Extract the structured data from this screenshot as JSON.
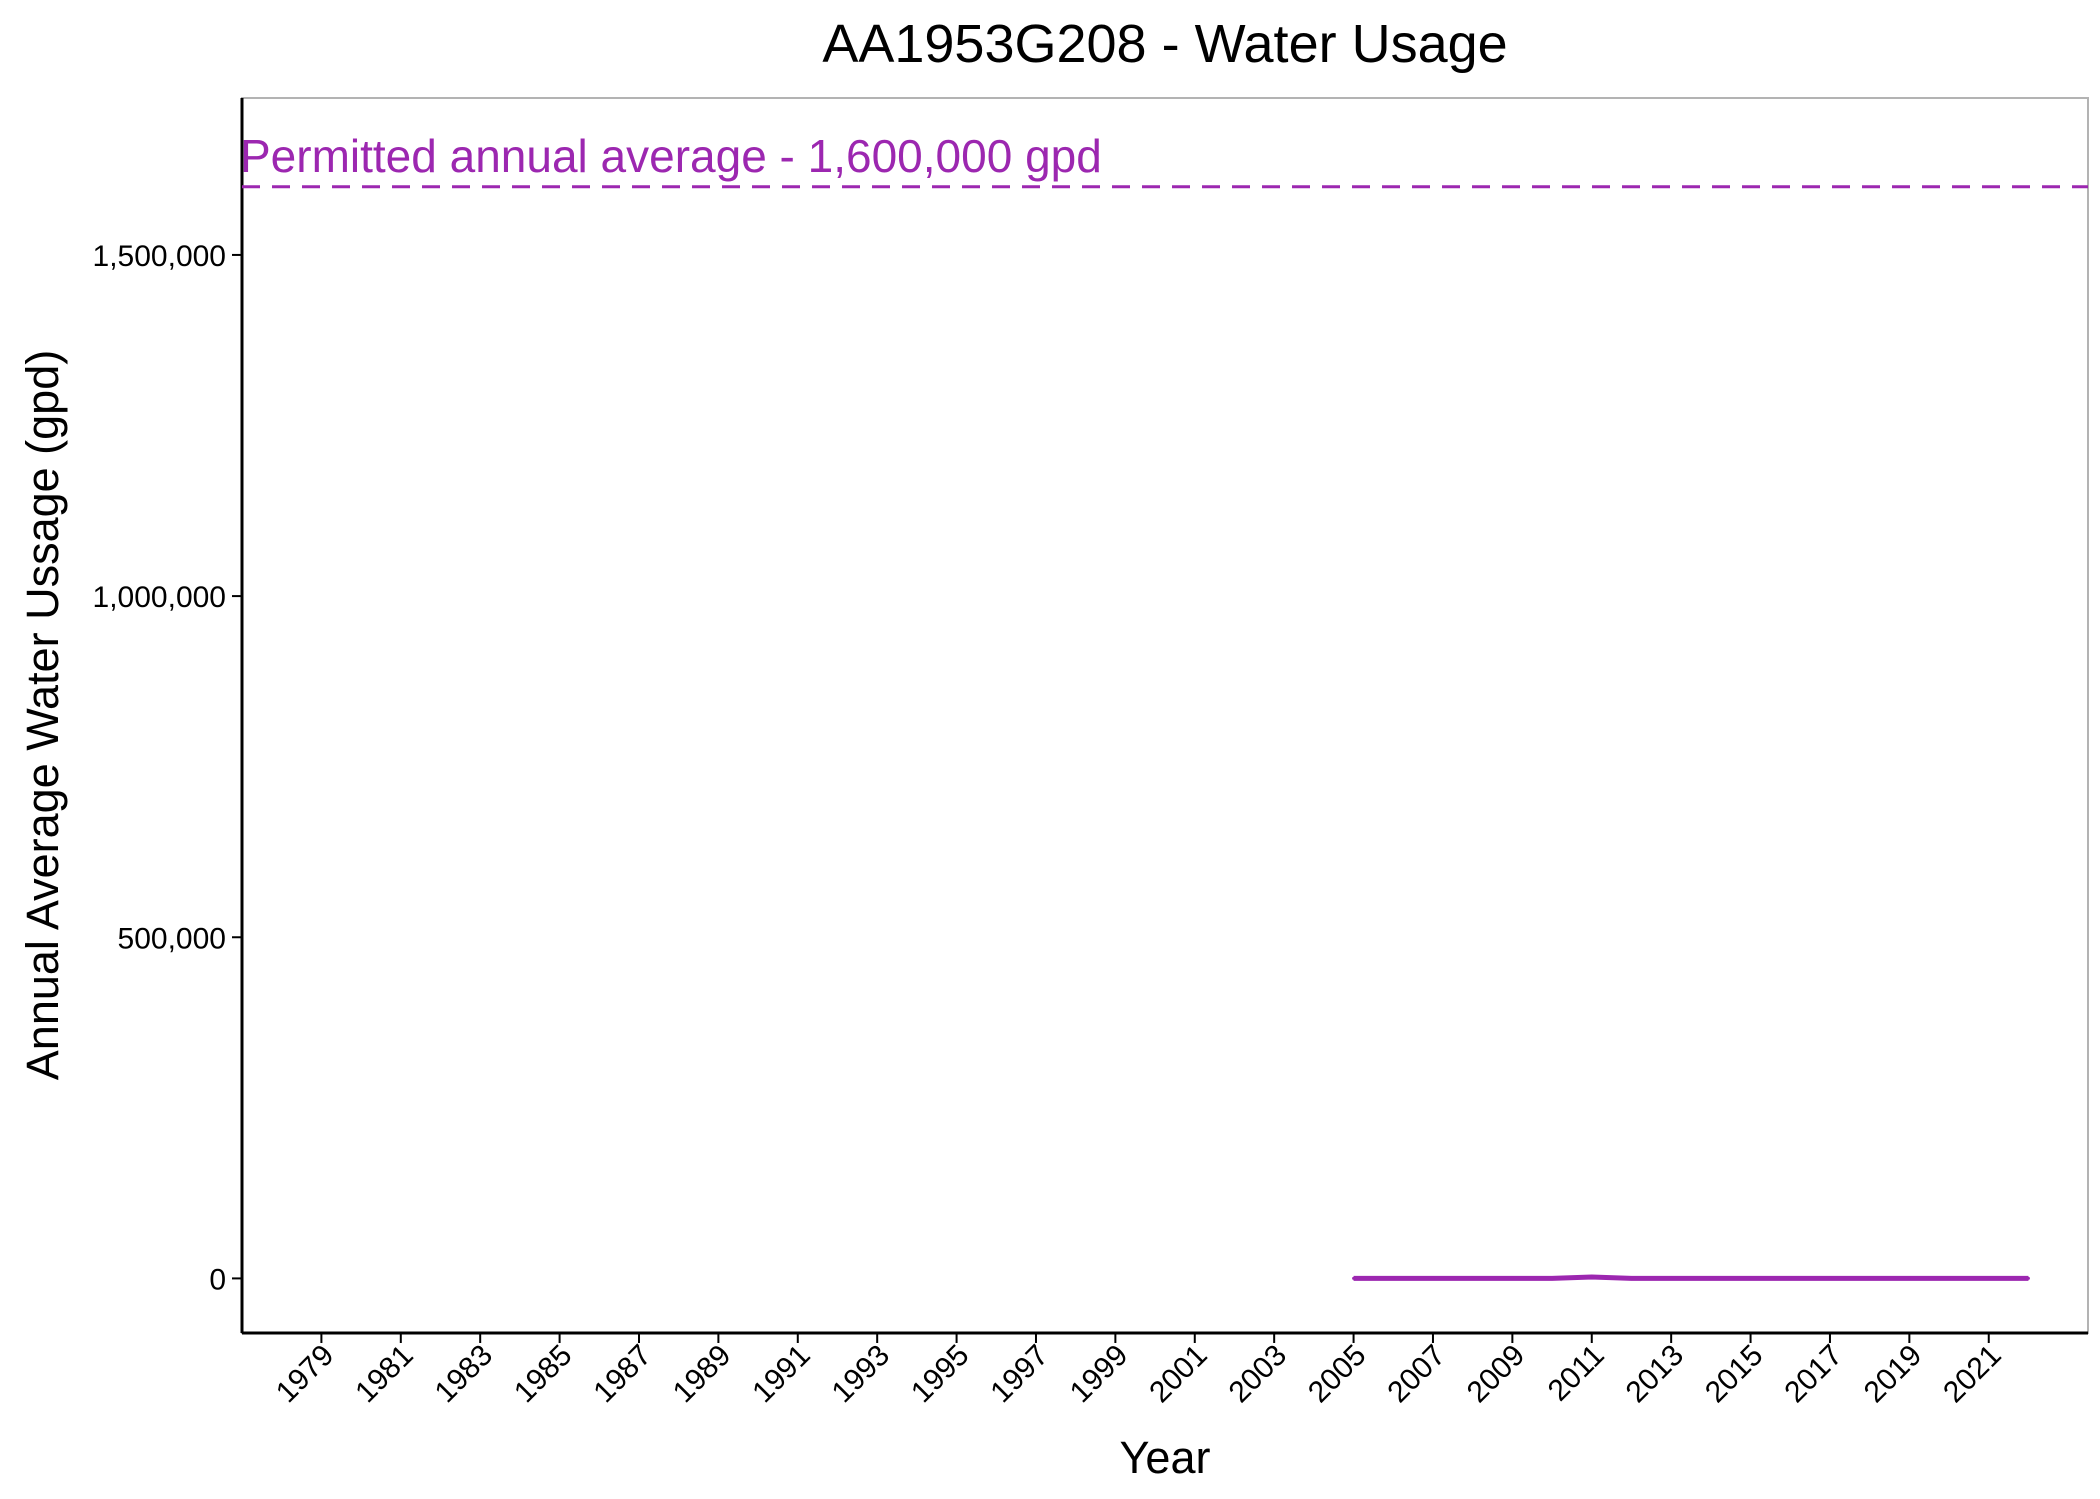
{
  "chart_data": {
    "type": "line",
    "title": "AA1953G208 - Water Usage",
    "xlabel": "Year",
    "ylabel": "Annual Average Water Ussage (gpd)",
    "xlim": [
      1977,
      2023.5
    ],
    "ylim": [
      -80000,
      1730000
    ],
    "x_ticks": [
      "1979",
      "1981",
      "1983",
      "1985",
      "1987",
      "1989",
      "1991",
      "1993",
      "1995",
      "1997",
      "1999",
      "2001",
      "2003",
      "2005",
      "2007",
      "2009",
      "2011",
      "2013",
      "2015",
      "2017",
      "2019",
      "2021"
    ],
    "y_ticks": [
      {
        "value": 0,
        "label": "0"
      },
      {
        "value": 500000,
        "label": "500,000"
      },
      {
        "value": 1000000,
        "label": "1,000,000"
      },
      {
        "value": 1500000,
        "label": "1,500,000"
      }
    ],
    "grid": false,
    "series": [
      {
        "color": "#9C27B0",
        "x": [
          2005,
          2006,
          2007,
          2008,
          2009,
          2010,
          2011,
          2012,
          2013,
          2014,
          2015,
          2016,
          2017,
          2018,
          2019,
          2020,
          2021,
          2022
        ],
        "values": [
          0,
          0,
          0,
          0,
          0,
          0,
          2000,
          0,
          0,
          0,
          0,
          0,
          0,
          0,
          0,
          0,
          0,
          0
        ]
      }
    ],
    "reference_line": {
      "value": 1600000,
      "label": "Permitted annual average - 1,600,000 gpd",
      "style": "dashed",
      "color": "#9C27B0"
    }
  }
}
